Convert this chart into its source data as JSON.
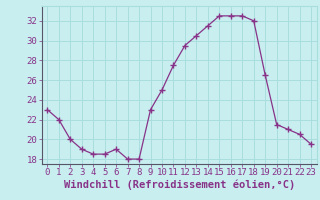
{
  "x": [
    0,
    1,
    2,
    3,
    4,
    5,
    6,
    7,
    8,
    9,
    10,
    11,
    12,
    13,
    14,
    15,
    16,
    17,
    18,
    19,
    20,
    21,
    22,
    23
  ],
  "y": [
    23.0,
    22.0,
    20.0,
    19.0,
    18.5,
    18.5,
    19.0,
    18.0,
    18.0,
    23.0,
    25.0,
    27.5,
    29.5,
    30.5,
    31.5,
    32.5,
    32.5,
    32.5,
    32.0,
    26.5,
    21.5,
    21.0,
    20.5,
    19.5
  ],
  "line_color": "#883388",
  "marker": "+",
  "marker_size": 4,
  "bg_color": "#c8eef0",
  "grid_color": "#aadddd",
  "axis_label_color": "#883388",
  "left_spine_color": "#555566",
  "bottom_spine_color": "#555566",
  "xlabel": "Windchill (Refroidissement éolien,°C)",
  "xlim": [
    -0.5,
    23.5
  ],
  "ylim": [
    17.5,
    33.5
  ],
  "yticks": [
    18,
    20,
    22,
    24,
    26,
    28,
    30,
    32
  ],
  "xticks": [
    0,
    1,
    2,
    3,
    4,
    5,
    6,
    7,
    8,
    9,
    10,
    11,
    12,
    13,
    14,
    15,
    16,
    17,
    18,
    19,
    20,
    21,
    22,
    23
  ],
  "xtick_labels": [
    "0",
    "1",
    "2",
    "3",
    "4",
    "5",
    "6",
    "7",
    "8",
    "9",
    "10",
    "11",
    "12",
    "13",
    "14",
    "15",
    "16",
    "17",
    "18",
    "19",
    "20",
    "21",
    "22",
    "23"
  ],
  "tick_fontsize": 6.5,
  "xlabel_fontsize": 7.5
}
